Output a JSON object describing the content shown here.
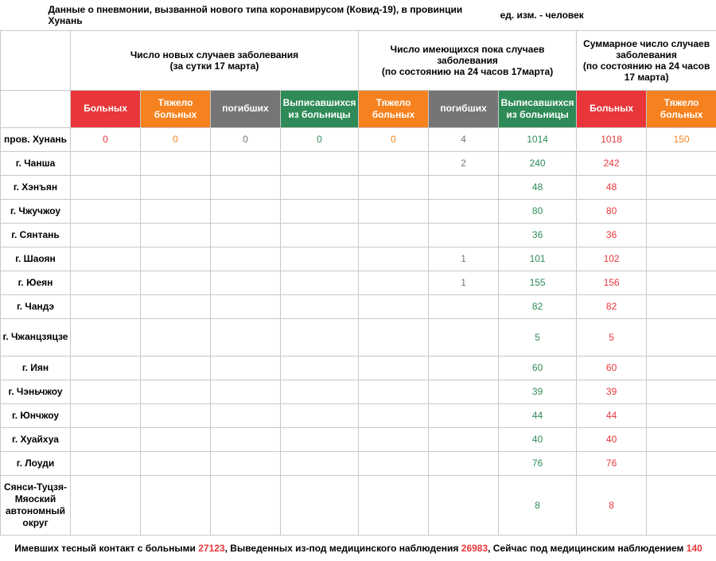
{
  "header": {
    "title": "Данные о пневмонии, вызванной нового типа коронавирусом (Ковид-19), в провинции Хунань",
    "unit": "ед. изм. - человек"
  },
  "table": {
    "groups": [
      {
        "label": "Число новых случаев заболевания\n(за сутки 17 марта)",
        "span": 4
      },
      {
        "label": "Число имеющихся пока случаев заболевания\n(по состоянию на 24 часов 17марта)",
        "span": 3
      },
      {
        "label": "Суммарное число случаев заболевания\n(по состоянию на 24 часов 17 марта)",
        "span": 2
      }
    ],
    "columns": [
      {
        "label": "Больных",
        "color": "#e8363a"
      },
      {
        "label": "Тяжело больных",
        "color": "#f5821f"
      },
      {
        "label": "погибших",
        "color": "#757575"
      },
      {
        "label": "Выписавшихся из больницы",
        "color": "#2e8b57"
      },
      {
        "label": "Тяжело больных",
        "color": "#f5821f"
      },
      {
        "label": "погибших",
        "color": "#757575"
      },
      {
        "label": "Выписавшихся из больницы",
        "color": "#2e8b57"
      },
      {
        "label": "Больных",
        "color": "#e8363a"
      },
      {
        "label": "Тяжело больных",
        "color": "#f5821f"
      }
    ],
    "rows": [
      {
        "name": "пров. Хунань",
        "values": [
          0,
          0,
          0,
          0,
          0,
          4,
          1014,
          1018,
          150
        ]
      },
      {
        "name": "г. Чанша",
        "values": [
          null,
          null,
          null,
          null,
          null,
          2,
          240,
          242,
          null
        ]
      },
      {
        "name": "г. Хэнъян",
        "values": [
          null,
          null,
          null,
          null,
          null,
          null,
          48,
          48,
          null
        ]
      },
      {
        "name": "г. Чжучжоу",
        "values": [
          null,
          null,
          null,
          null,
          null,
          null,
          80,
          80,
          null
        ]
      },
      {
        "name": "г. Сянтань",
        "values": [
          null,
          null,
          null,
          null,
          null,
          null,
          36,
          36,
          null
        ]
      },
      {
        "name": "г. Шаоян",
        "values": [
          null,
          null,
          null,
          null,
          null,
          1,
          101,
          102,
          null
        ]
      },
      {
        "name": "г. Юеян",
        "values": [
          null,
          null,
          null,
          null,
          null,
          1,
          155,
          156,
          null
        ]
      },
      {
        "name": "г. Чандэ",
        "values": [
          null,
          null,
          null,
          null,
          null,
          null,
          82,
          82,
          null
        ]
      },
      {
        "name": "г. Чжанцзяцзе",
        "values": [
          null,
          null,
          null,
          null,
          null,
          null,
          5,
          5,
          null
        ]
      },
      {
        "name": "г. Иян",
        "values": [
          null,
          null,
          null,
          null,
          null,
          null,
          60,
          60,
          null
        ]
      },
      {
        "name": "г. Чэньчжоу",
        "values": [
          null,
          null,
          null,
          null,
          null,
          null,
          39,
          39,
          null
        ]
      },
      {
        "name": "г. Юнчжоу",
        "values": [
          null,
          null,
          null,
          null,
          null,
          null,
          44,
          44,
          null
        ]
      },
      {
        "name": "г. Хуайхуа",
        "values": [
          null,
          null,
          null,
          null,
          null,
          null,
          40,
          40,
          null
        ]
      },
      {
        "name": "г. Лоуди",
        "values": [
          null,
          null,
          null,
          null,
          null,
          null,
          76,
          76,
          null
        ]
      },
      {
        "name": "Сянси-Туцзя-Мяоский автономный округ",
        "values": [
          null,
          null,
          null,
          null,
          null,
          null,
          8,
          8,
          null
        ]
      }
    ]
  },
  "footer": {
    "items": [
      {
        "label": "Имевших тесный контакт с больными",
        "value": 27123
      },
      {
        "label": ", Выведенных из-под медицинского наблюдения",
        "value": 26983
      },
      {
        "label": ", Сейчас под медицинским наблюдением",
        "value": 140
      }
    ]
  }
}
